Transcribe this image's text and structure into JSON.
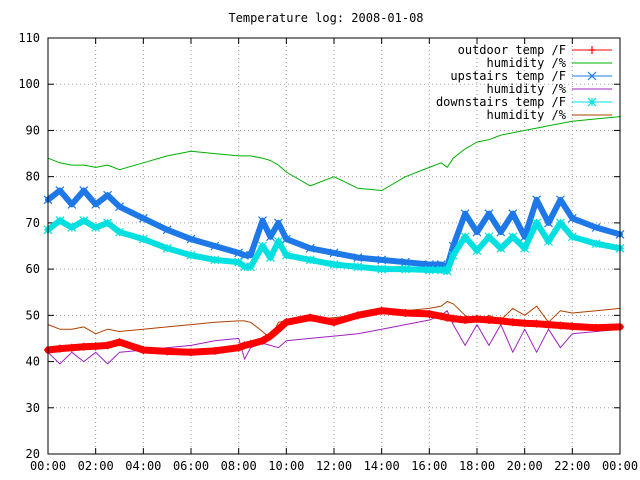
{
  "chart_data": {
    "type": "line",
    "title": "Temperature log: 2008-01-08",
    "xlabel": "",
    "ylabel": "",
    "xlim": [
      "00:00",
      "24:00"
    ],
    "ylim": [
      20,
      110
    ],
    "grid": true,
    "legend_position": "top-right",
    "x_tick_labels": [
      "00:00",
      "02:00",
      "04:00",
      "06:00",
      "08:00",
      "10:00",
      "12:00",
      "14:00",
      "16:00",
      "18:00",
      "20:00",
      "22:00",
      "00:00"
    ],
    "y_tick_labels": [
      "20",
      "30",
      "40",
      "50",
      "60",
      "70",
      "80",
      "90",
      "100",
      "110"
    ],
    "x": [
      "00:00",
      "00:30",
      "01:00",
      "01:30",
      "02:00",
      "02:30",
      "03:00",
      "04:00",
      "05:00",
      "06:00",
      "07:00",
      "08:00",
      "08:15",
      "08:30",
      "09:00",
      "09:20",
      "09:40",
      "10:00",
      "11:00",
      "12:00",
      "13:00",
      "14:00",
      "15:00",
      "16:00",
      "16:30",
      "16:45",
      "17:00",
      "17:30",
      "18:00",
      "18:30",
      "19:00",
      "19:30",
      "20:00",
      "20:30",
      "21:00",
      "21:30",
      "22:00",
      "23:00",
      "24:00"
    ],
    "series": [
      {
        "name": "outdoor temp /F",
        "color": "#ff0000",
        "marker": "plus",
        "values": [
          42.5,
          42.8,
          43.0,
          43.2,
          43.3,
          43.5,
          44.2,
          42.5,
          42.2,
          42.0,
          42.3,
          43.0,
          43.5,
          43.8,
          44.5,
          45.5,
          47.0,
          48.5,
          49.5,
          48.5,
          50.0,
          51.0,
          50.5,
          50.3,
          49.8,
          49.5,
          49.3,
          49.0,
          49.2,
          49.0,
          48.8,
          48.5,
          48.3,
          48.2,
          48.0,
          47.8,
          47.6,
          47.3,
          47.5
        ]
      },
      {
        "name": "humidity /%",
        "color": "#00b000",
        "marker": "none",
        "values": [
          84.0,
          83.0,
          82.5,
          82.5,
          82.0,
          82.5,
          81.5,
          83.0,
          84.5,
          85.5,
          85.0,
          84.5,
          84.5,
          84.5,
          84.0,
          83.5,
          82.5,
          81.0,
          78.0,
          80.0,
          77.5,
          77.0,
          80.0,
          82.0,
          83.0,
          82.0,
          84.0,
          86.0,
          87.5,
          88.0,
          89.0,
          89.5,
          90.0,
          90.5,
          91.0,
          91.5,
          92.0,
          92.5,
          93.0
        ]
      },
      {
        "name": "upstairs temp /F",
        "color": "#1e78e8",
        "marker": "cross",
        "values": [
          75.0,
          77.0,
          74.0,
          77.0,
          74.0,
          76.0,
          73.5,
          71.0,
          68.5,
          66.5,
          65.0,
          63.5,
          63.0,
          63.0,
          70.5,
          67.0,
          70.0,
          66.5,
          64.5,
          63.5,
          62.5,
          62.0,
          61.5,
          61.0,
          61.0,
          60.5,
          65.0,
          72.0,
          68.0,
          72.0,
          68.0,
          72.0,
          67.0,
          75.0,
          70.0,
          75.0,
          71.0,
          69.0,
          67.5
        ]
      },
      {
        "name": "humidity /%",
        "color": "#a020c0",
        "marker": "none",
        "values": [
          42.0,
          39.5,
          42.0,
          40.0,
          42.0,
          39.5,
          42.0,
          42.5,
          43.0,
          43.5,
          44.5,
          45.0,
          40.5,
          43.0,
          44.0,
          43.5,
          43.0,
          44.5,
          45.0,
          45.5,
          46.0,
          47.0,
          48.0,
          49.0,
          50.0,
          51.0,
          48.0,
          43.5,
          48.0,
          43.5,
          48.0,
          42.0,
          47.0,
          42.0,
          47.0,
          43.0,
          46.0,
          46.5,
          47.0
        ]
      },
      {
        "name": "downstairs temp /F",
        "color": "#00e0e0",
        "marker": "star",
        "values": [
          68.5,
          70.5,
          69.0,
          70.5,
          69.0,
          70.0,
          68.0,
          66.5,
          64.5,
          63.0,
          62.0,
          61.5,
          60.5,
          60.5,
          65.0,
          62.5,
          66.0,
          63.0,
          62.0,
          61.0,
          60.5,
          60.0,
          60.0,
          59.8,
          59.8,
          59.6,
          63.0,
          67.0,
          64.0,
          67.0,
          64.5,
          67.0,
          64.5,
          70.0,
          66.0,
          70.0,
          67.0,
          65.5,
          64.5
        ]
      },
      {
        "name": "humidity /%",
        "color": "#b04000",
        "marker": "none",
        "values": [
          48.0,
          47.0,
          47.0,
          47.5,
          46.0,
          47.0,
          46.5,
          47.0,
          47.5,
          48.0,
          48.5,
          48.8,
          48.8,
          48.5,
          46.5,
          45.0,
          48.5,
          48.8,
          49.0,
          49.5,
          50.0,
          50.5,
          51.0,
          51.5,
          52.0,
          53.0,
          52.5,
          50.0,
          48.5,
          50.0,
          49.0,
          51.5,
          50.0,
          52.0,
          48.5,
          51.0,
          50.5,
          51.0,
          51.5
        ]
      }
    ]
  }
}
